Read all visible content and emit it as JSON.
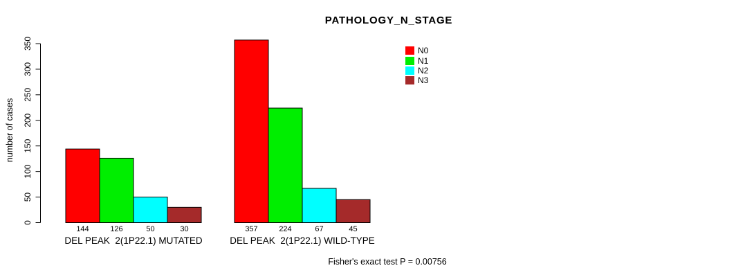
{
  "title": "PATHOLOGY_N_STAGE",
  "footer": "Fisher's exact test P = 0.00756",
  "chart_data": {
    "type": "bar",
    "title": "PATHOLOGY_N_STAGE",
    "ylabel": "number of cases",
    "xlabel": "",
    "ylim": [
      0,
      350
    ],
    "yticks": [
      0,
      50,
      100,
      150,
      200,
      250,
      300,
      350
    ],
    "grid": false,
    "legend_position": "top-right",
    "bar_value_labels": true,
    "categories": [
      "DEL PEAK  2(1P22.1) MUTATED",
      "DEL PEAK  2(1P22.1) WILD-TYPE"
    ],
    "series": [
      {
        "name": "N0",
        "color": "#FF0000",
        "values": [
          144,
          357
        ]
      },
      {
        "name": "N1",
        "color": "#00EE00",
        "values": [
          126,
          224
        ]
      },
      {
        "name": "N2",
        "color": "#00FFFF",
        "values": [
          50,
          67
        ]
      },
      {
        "name": "N3",
        "color": "#A52A2A",
        "values": [
          30,
          45
        ]
      }
    ],
    "annotation": "Fisher's exact test P = 0.00756",
    "bar_outline_color": "#000000",
    "axis_color": "#000000"
  }
}
